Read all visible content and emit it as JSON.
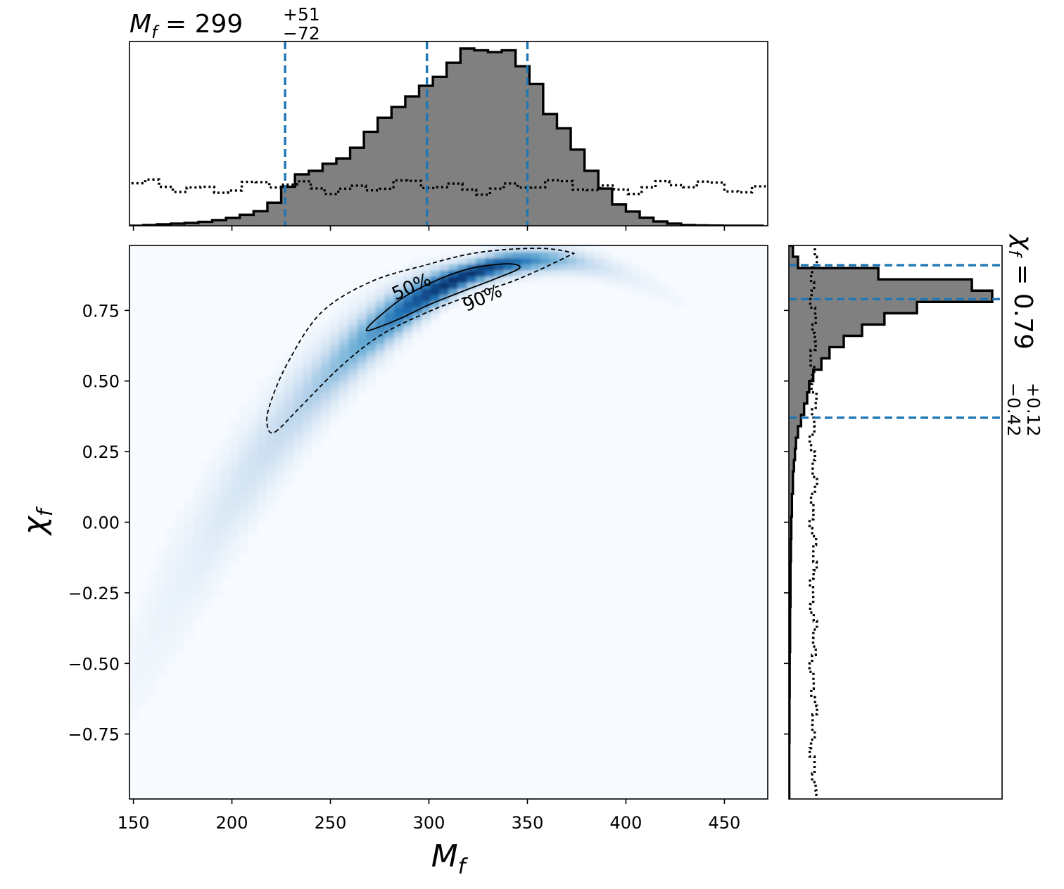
{
  "chart_data": [
    {
      "panel": "top-marginal",
      "type": "histogram",
      "title_lhs": "M",
      "title_sub": "f",
      "title_eq": " = 299",
      "title_plus": "+51",
      "title_minus": "−72",
      "xlim": [
        148,
        472
      ],
      "bin_edges": [
        148,
        155,
        162,
        169,
        176,
        183,
        190,
        197,
        204,
        211,
        218,
        225,
        232,
        239,
        246,
        253,
        260,
        267,
        274,
        281,
        288,
        295,
        302,
        309,
        316,
        323,
        330,
        337,
        344,
        351,
        358,
        365,
        372,
        379,
        386,
        393,
        400,
        407,
        414,
        421,
        428,
        435,
        442,
        449,
        456,
        463,
        470
      ],
      "posterior_heights": [
        0,
        0.004,
        0.008,
        0.012,
        0.016,
        0.022,
        0.032,
        0.045,
        0.062,
        0.082,
        0.13,
        0.22,
        0.29,
        0.31,
        0.35,
        0.38,
        0.44,
        0.53,
        0.61,
        0.67,
        0.73,
        0.79,
        0.84,
        0.92,
        1.0,
        0.99,
        0.98,
        0.99,
        0.9,
        0.8,
        0.63,
        0.55,
        0.43,
        0.31,
        0.21,
        0.12,
        0.08,
        0.046,
        0.024,
        0.012,
        0.004,
        0.002,
        0.001,
        0,
        0,
        0
      ],
      "prior_level": 0.22,
      "quantile_lines": [
        227,
        299,
        350
      ],
      "line_color": "#1f77b4",
      "fill_color": "#808080"
    },
    {
      "panel": "joint",
      "type": "heatmap",
      "xlabel": "M",
      "xlabel_sub": "f",
      "ylabel": "χ",
      "ylabel_sub": "f",
      "xlim": [
        148,
        472
      ],
      "ylim": [
        -0.98,
        0.98
      ],
      "xticks": [
        "150",
        "200",
        "250",
        "300",
        "350",
        "400",
        "450"
      ],
      "xtick_values": [
        150,
        200,
        250,
        300,
        350,
        400,
        450
      ],
      "yticks": [
        "0.75",
        "0.50",
        "0.25",
        "0.00",
        "−0.25",
        "−0.50",
        "−0.75"
      ],
      "ytick_values": [
        0.75,
        0.5,
        0.25,
        0.0,
        -0.25,
        -0.5,
        -0.75
      ],
      "colormap": [
        "#f7fbff",
        "#c6dbef",
        "#6baed6",
        "#2171b5",
        "#08306b"
      ],
      "contour_labels": [
        "50%",
        "90%"
      ],
      "contour_50": [
        [
          270,
          0.68
        ],
        [
          285,
          0.72
        ],
        [
          300,
          0.77
        ],
        [
          318,
          0.82
        ],
        [
          333,
          0.86
        ],
        [
          346,
          0.9
        ],
        [
          340,
          0.915
        ],
        [
          322,
          0.9
        ],
        [
          305,
          0.86
        ],
        [
          288,
          0.8
        ],
        [
          275,
          0.73
        ],
        [
          269,
          0.69
        ]
      ],
      "contour_90": [
        [
          222,
          0.32
        ],
        [
          235,
          0.41
        ],
        [
          255,
          0.55
        ],
        [
          275,
          0.66
        ],
        [
          298,
          0.74
        ],
        [
          320,
          0.8
        ],
        [
          345,
          0.86
        ],
        [
          370,
          0.94
        ],
        [
          372,
          0.955
        ],
        [
          355,
          0.97
        ],
        [
          325,
          0.955
        ],
        [
          298,
          0.91
        ],
        [
          270,
          0.85
        ],
        [
          245,
          0.74
        ],
        [
          228,
          0.56
        ],
        [
          219,
          0.41
        ],
        [
          218,
          0.34
        ]
      ]
    },
    {
      "panel": "right-marginal",
      "type": "histogram",
      "title_lhs": "χ",
      "title_sub": "f",
      "title_eq": " = 0.79",
      "title_plus": "+0.12",
      "title_minus": "−0.42",
      "ylim": [
        -0.98,
        0.98
      ],
      "bin_edges": [
        0.98,
        0.94,
        0.9,
        0.86,
        0.82,
        0.78,
        0.74,
        0.7,
        0.66,
        0.62,
        0.58,
        0.54,
        0.5,
        0.46,
        0.42,
        0.38,
        0.34,
        0.3,
        0.26,
        0.22,
        0.18,
        0.1,
        0.02,
        -0.06,
        -0.14,
        -0.3,
        -0.46,
        -0.62,
        -0.78,
        -0.98
      ],
      "posterior_heights": [
        0.02,
        0.045,
        0.44,
        0.9,
        1.0,
        0.63,
        0.47,
        0.36,
        0.27,
        0.2,
        0.16,
        0.12,
        0.1,
        0.09,
        0.075,
        0.06,
        0.045,
        0.035,
        0.03,
        0.025,
        0.02,
        0.015,
        0.012,
        0.01,
        0.008,
        0.006,
        0.004,
        0.003,
        0.002
      ],
      "prior_level": 0.12,
      "quantile_lines": [
        0.91,
        0.79,
        0.37
      ],
      "line_color": "#1f77b4",
      "fill_color": "#808080"
    }
  ]
}
